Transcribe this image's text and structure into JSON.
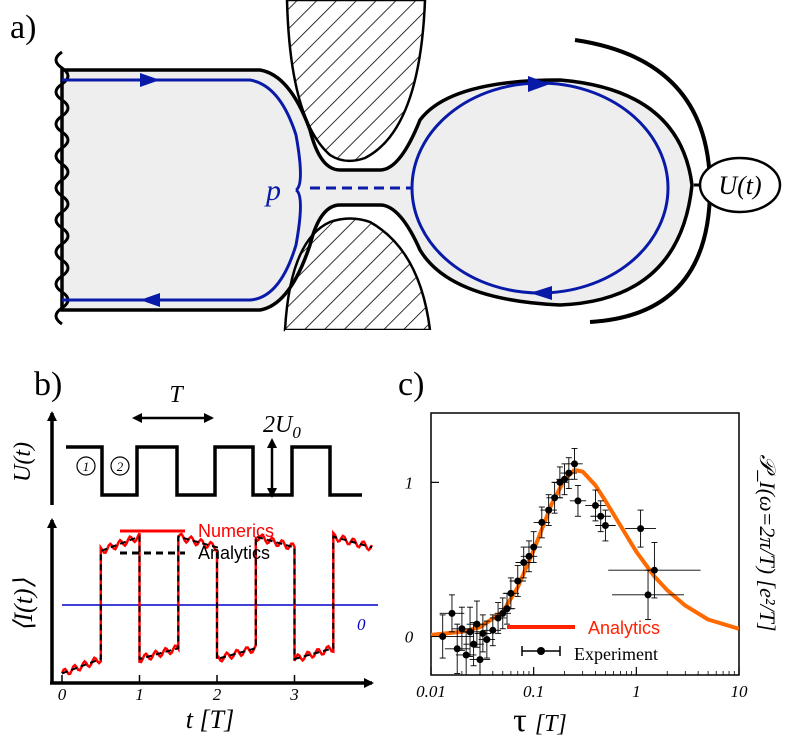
{
  "panels": {
    "a": "a)",
    "b": "b)",
    "c": "c)"
  },
  "panel_a": {
    "point_label": "p",
    "voltage_label": "U(t)"
  },
  "panel_b": {
    "u_axis_label": "U(t)",
    "period_label": "T",
    "amplitude_label": "2U",
    "amplitude_sub": "0",
    "phase1_label": "1",
    "phase2_label": "2",
    "i_axis_label": "⟨I(t)⟩",
    "zero_label": "0",
    "x_axis_label": "t [T]",
    "legend": {
      "numerics": "Numerics",
      "analytics": "Analytics"
    },
    "colors": {
      "numerics": "#ff0000",
      "analytics": "#000000",
      "zero_line": "#0000cc"
    }
  },
  "chart_data": [
    {
      "type": "line",
      "panel": "b",
      "xlabel": "t [T]",
      "ylabel": "⟨I(t)⟩",
      "xlim": [
        0,
        4
      ],
      "x_ticks": [
        "0",
        "1",
        "2",
        "3"
      ],
      "series": [
        {
          "name": "Numerics",
          "style": "solid",
          "color": "#ff0000",
          "x": [
            0,
            0.5,
            0.5,
            1,
            1,
            1.5,
            1.5,
            2,
            2,
            2.5,
            2.5,
            3,
            3,
            3.5,
            3.5,
            4
          ],
          "y": [
            -0.95,
            -0.75,
            0.75,
            0.95,
            -0.75,
            -0.6,
            0.95,
            0.8,
            -0.75,
            -0.6,
            0.95,
            0.8,
            -0.75,
            -0.6,
            0.95,
            0.8
          ]
        },
        {
          "name": "Analytics",
          "style": "dashed",
          "color": "#000000",
          "x": [
            0,
            0.5,
            0.5,
            1,
            1,
            1.5,
            1.5,
            2,
            2,
            2.5,
            2.5,
            3,
            3,
            3.5,
            3.5,
            4
          ],
          "y": [
            -0.95,
            -0.75,
            0.75,
            0.95,
            -0.75,
            -0.6,
            0.95,
            0.8,
            -0.75,
            -0.6,
            0.95,
            0.8,
            -0.75,
            -0.6,
            0.95,
            0.8
          ]
        }
      ]
    },
    {
      "type": "scatter",
      "panel": "c",
      "xlabel": "τ [T]",
      "ylabel": "𝒫_I(ω=2π/T)  [e²/T]",
      "x_scale": "log",
      "xlim": [
        0.01,
        10
      ],
      "ylim": [
        -0.25,
        1.45
      ],
      "x_ticks": [
        "0.01",
        "0.1",
        "1",
        "10"
      ],
      "y_ticks": [
        "0",
        "1"
      ],
      "legend": {
        "analytics": "Analytics",
        "experiment": "Experiment"
      },
      "colors": {
        "analytics": "#ff6a00",
        "experiment": "#000000",
        "analytics_legend": "#ff2200"
      },
      "series": [
        {
          "name": "Analytics",
          "style": "line",
          "x": [
            0.01,
            0.02,
            0.03,
            0.05,
            0.07,
            0.1,
            0.15,
            0.2,
            0.25,
            0.3,
            0.4,
            0.5,
            0.7,
            1,
            1.5,
            2,
            3,
            5,
            10
          ],
          "y": [
            0.01,
            0.03,
            0.06,
            0.16,
            0.32,
            0.56,
            0.86,
            1.02,
            1.08,
            1.07,
            0.98,
            0.88,
            0.72,
            0.55,
            0.39,
            0.3,
            0.2,
            0.11,
            0.05
          ]
        },
        {
          "name": "Experiment",
          "style": "points",
          "points": [
            {
              "x": 0.013,
              "y": 0.0,
              "xe": 0.3,
              "ye": 0.14
            },
            {
              "x": 0.016,
              "y": 0.15,
              "xe": 0.12,
              "ye": 0.12
            },
            {
              "x": 0.018,
              "y": -0.08,
              "xe": 0.12,
              "ye": 0.16
            },
            {
              "x": 0.02,
              "y": 0.05,
              "xe": 0.1,
              "ye": 0.14
            },
            {
              "x": 0.022,
              "y": -0.12,
              "xe": 0.1,
              "ye": 0.15
            },
            {
              "x": 0.024,
              "y": 0.03,
              "xe": 0.1,
              "ye": 0.16
            },
            {
              "x": 0.026,
              "y": -0.05,
              "xe": 0.1,
              "ye": 0.14
            },
            {
              "x": 0.028,
              "y": 0.08,
              "xe": 0.1,
              "ye": 0.15
            },
            {
              "x": 0.03,
              "y": -0.15,
              "xe": 0.1,
              "ye": 0.18
            },
            {
              "x": 0.032,
              "y": 0.02,
              "xe": 0.08,
              "ye": 0.12
            },
            {
              "x": 0.035,
              "y": -0.02,
              "xe": 0.08,
              "ye": 0.12
            },
            {
              "x": 0.04,
              "y": 0.04,
              "xe": 0.08,
              "ye": 0.1
            },
            {
              "x": 0.045,
              "y": 0.12,
              "xe": 0.08,
              "ye": 0.1
            },
            {
              "x": 0.05,
              "y": 0.15,
              "xe": 0.08,
              "ye": 0.1
            },
            {
              "x": 0.055,
              "y": 0.18,
              "xe": 0.08,
              "ye": 0.1
            },
            {
              "x": 0.06,
              "y": 0.28,
              "xe": 0.08,
              "ye": 0.1
            },
            {
              "x": 0.07,
              "y": 0.36,
              "xe": 0.08,
              "ye": 0.1
            },
            {
              "x": 0.08,
              "y": 0.48,
              "xe": 0.08,
              "ye": 0.1
            },
            {
              "x": 0.09,
              "y": 0.52,
              "xe": 0.08,
              "ye": 0.1
            },
            {
              "x": 0.1,
              "y": 0.58,
              "xe": 0.08,
              "ye": 0.1
            },
            {
              "x": 0.12,
              "y": 0.74,
              "xe": 0.08,
              "ye": 0.1
            },
            {
              "x": 0.14,
              "y": 0.82,
              "xe": 0.08,
              "ye": 0.1
            },
            {
              "x": 0.16,
              "y": 0.9,
              "xe": 0.08,
              "ye": 0.1
            },
            {
              "x": 0.18,
              "y": 1.0,
              "xe": 0.08,
              "ye": 0.1
            },
            {
              "x": 0.2,
              "y": 1.02,
              "xe": 0.08,
              "ye": 0.1
            },
            {
              "x": 0.22,
              "y": 1.06,
              "xe": 0.08,
              "ye": 0.1
            },
            {
              "x": 0.25,
              "y": 1.12,
              "xe": 0.08,
              "ye": 0.1
            },
            {
              "x": 0.27,
              "y": 0.88,
              "xe": 0.08,
              "ye": 0.1
            },
            {
              "x": 0.4,
              "y": 0.85,
              "xe": 0.1,
              "ye": 0.1
            },
            {
              "x": 0.45,
              "y": 0.78,
              "xe": 0.1,
              "ye": 0.1
            },
            {
              "x": 0.5,
              "y": 0.72,
              "xe": 0.1,
              "ye": 0.1
            },
            {
              "x": 1.1,
              "y": 0.7,
              "xe": 0.15,
              "ye": 0.12
            },
            {
              "x": 1.5,
              "y": 0.43,
              "xe": 0.45,
              "ye": 0.18
            },
            {
              "x": 1.3,
              "y": 0.27,
              "xe": 0.35,
              "ye": 0.16
            }
          ]
        }
      ]
    }
  ]
}
